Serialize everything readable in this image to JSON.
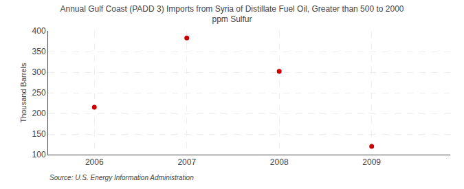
{
  "chart_data": {
    "type": "scatter",
    "title": "Annual Gulf Coast (PADD 3) Imports from Syria of Distillate Fuel Oil, Greater than 500 to 2000\nppm Sulfur",
    "ylabel": "Thousand Barrels",
    "annotations": [
      "Source: U.S. Energy Information Administration"
    ],
    "x": [
      2006,
      2007,
      2008,
      2009
    ],
    "values": [
      215,
      383,
      302,
      120
    ],
    "color": "#cc0000",
    "marker": "circle",
    "xlim": [
      2005.5,
      2009.85
    ],
    "xticks": [
      2006,
      2007,
      2008,
      2009
    ],
    "ylim": [
      100,
      400
    ],
    "yticks": [
      100,
      150,
      200,
      250,
      300,
      350,
      400
    ],
    "grid": true
  }
}
